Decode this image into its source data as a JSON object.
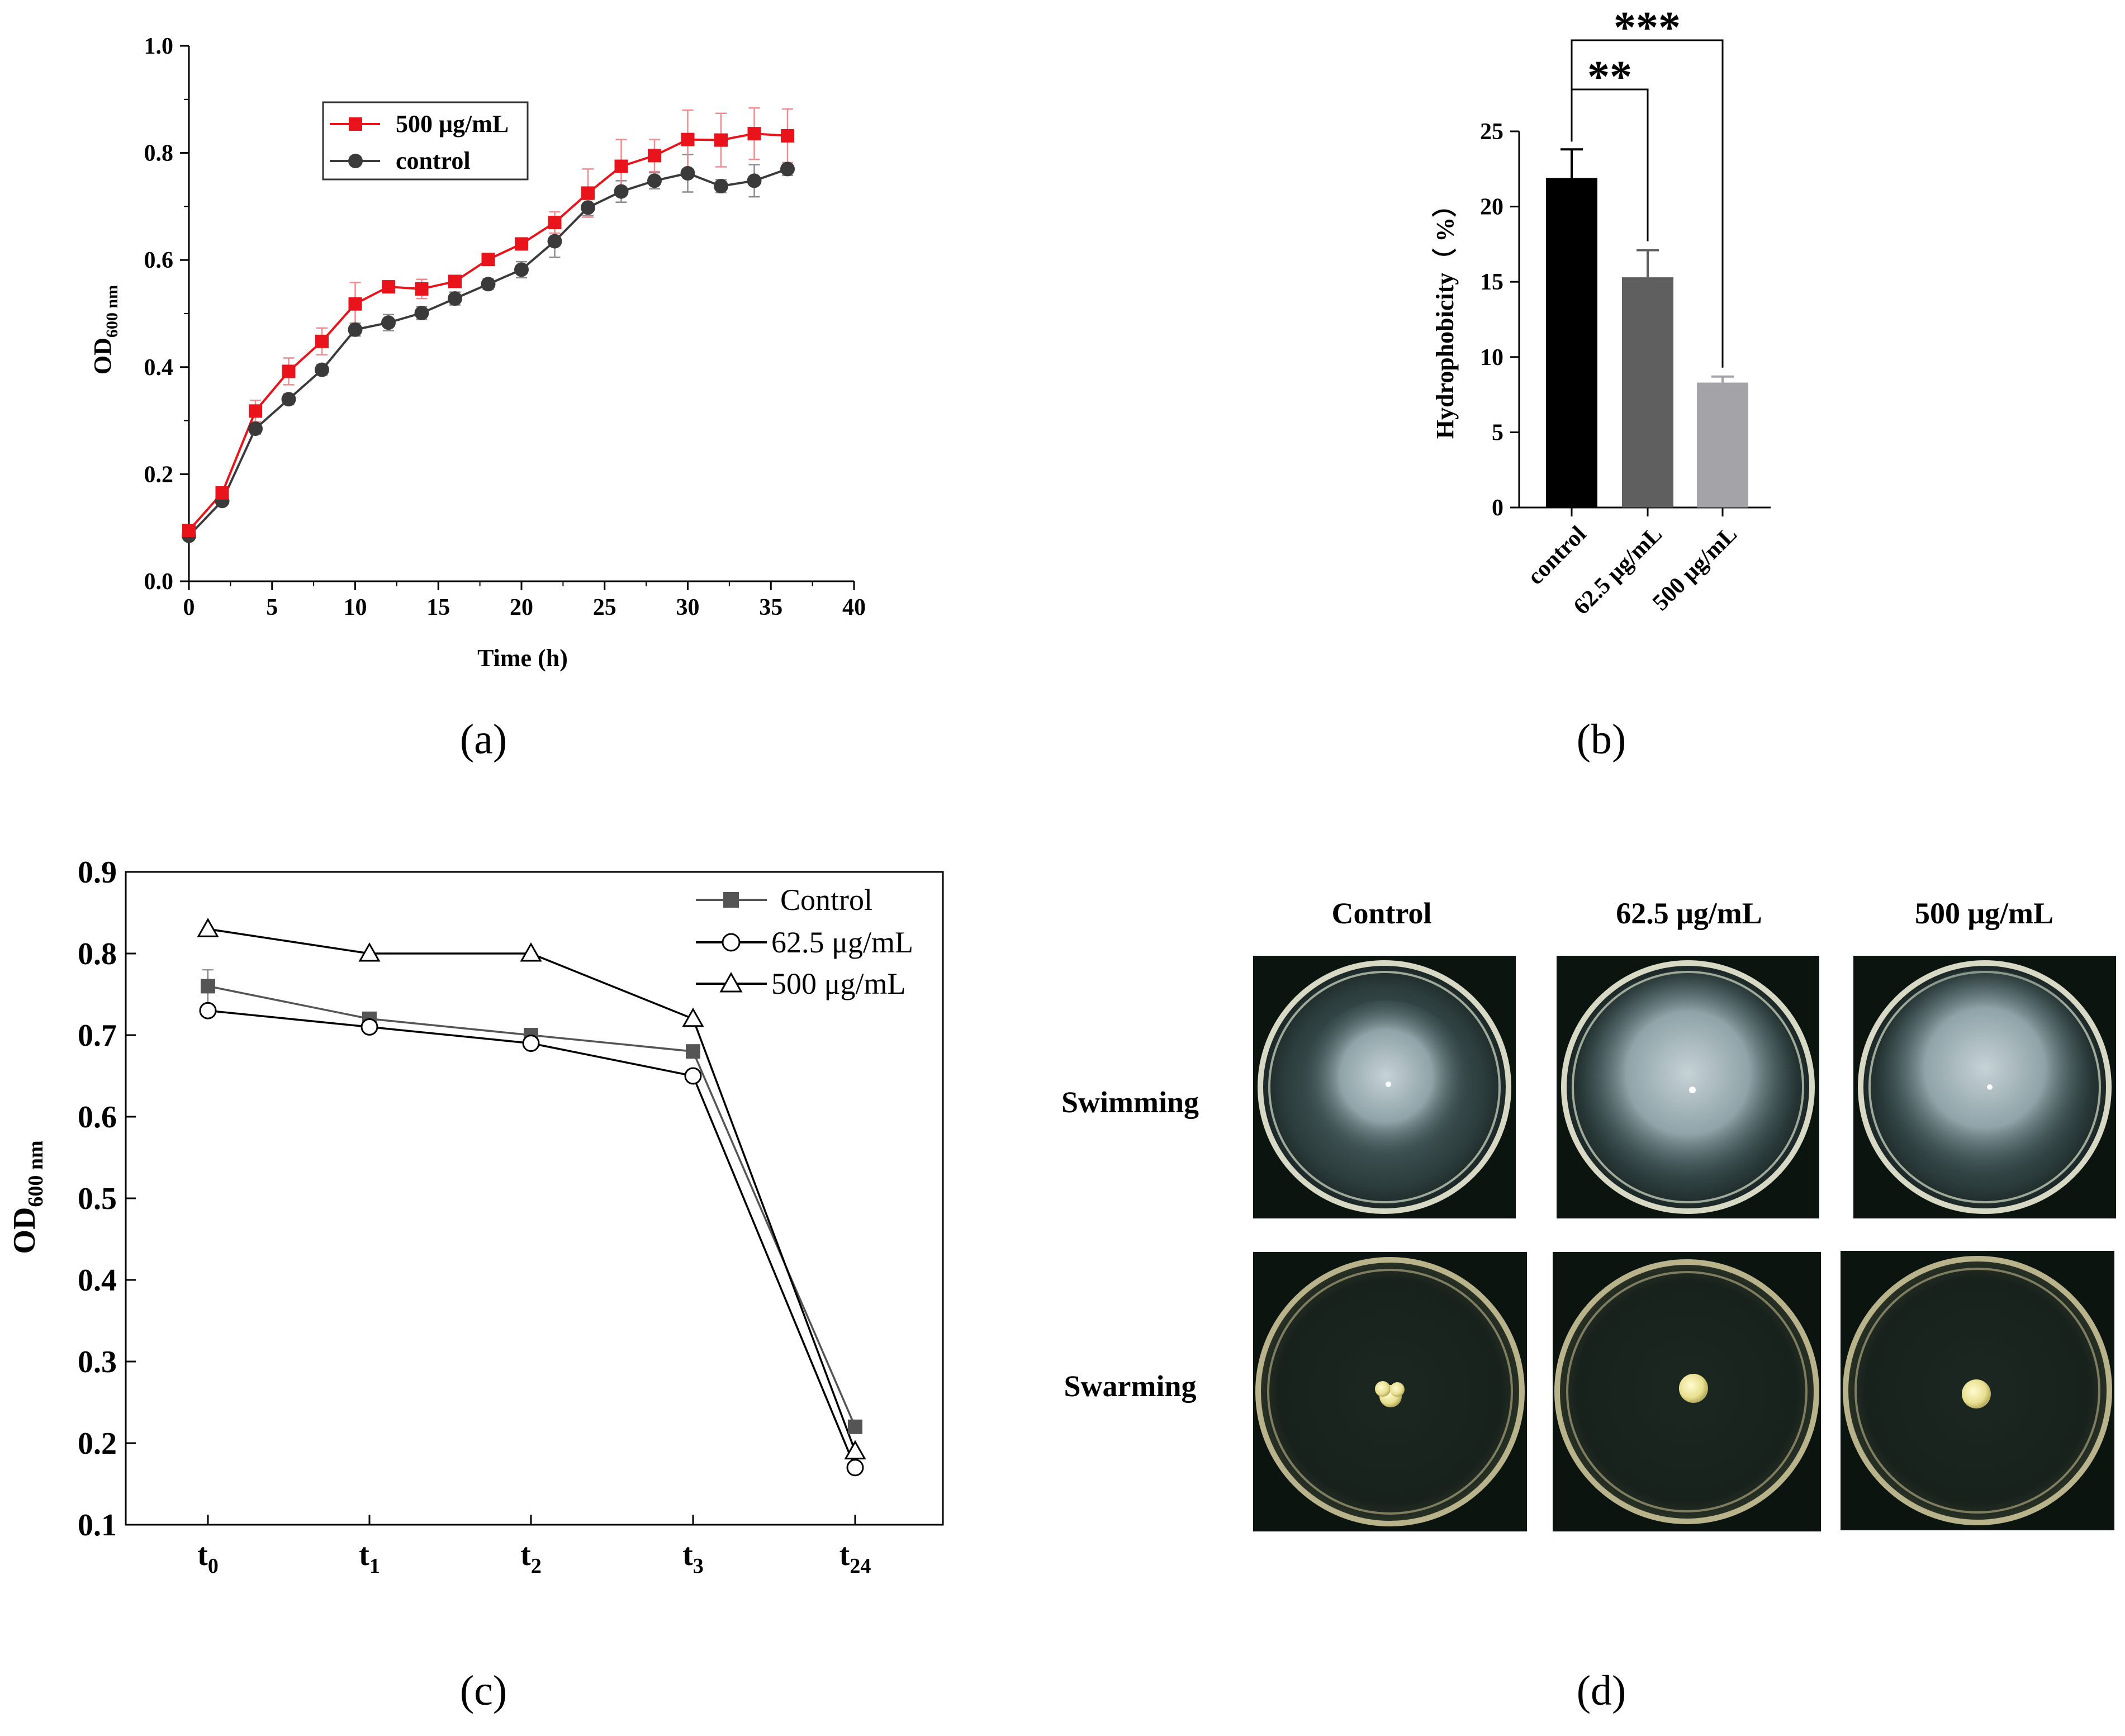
{
  "figure": {
    "panels": [
      "(a)",
      "(b)",
      "(c)",
      "(d)"
    ]
  },
  "colors": {
    "red_series": "#e8131b",
    "dark_series": "#3a3a3a",
    "bar_control": "#000000",
    "bar_62": "#5f5f5f",
    "bar_500": "#a4a4a8",
    "plate_bg": "#0c1410"
  },
  "chart_data": [
    {
      "panel": "(a)",
      "type": "line",
      "title": "",
      "xlabel": "Time (h)",
      "ylabel_main": "OD",
      "ylabel_sub": "600 nm",
      "xlim": [
        0,
        40
      ],
      "ylim": [
        0.0,
        1.0
      ],
      "xticks": [
        "0",
        "5",
        "10",
        "15",
        "20",
        "25",
        "30",
        "35",
        "40"
      ],
      "yticks": [
        "0.0",
        "0.2",
        "0.4",
        "0.6",
        "0.8",
        "1.0"
      ],
      "legend_position": "top-left",
      "x": [
        0,
        2,
        4,
        6,
        8,
        10,
        12,
        14,
        16,
        18,
        20,
        22,
        24,
        26,
        28,
        30,
        32,
        34,
        36
      ],
      "series": [
        {
          "name": "500 μg/mL",
          "marker": "square",
          "values": [
            0.095,
            0.165,
            0.318,
            0.392,
            0.448,
            0.518,
            0.55,
            0.546,
            0.56,
            0.601,
            0.63,
            0.67,
            0.725,
            0.775,
            0.795,
            0.825,
            0.824,
            0.836,
            0.832
          ],
          "errors": [
            0.005,
            0.008,
            0.02,
            0.025,
            0.025,
            0.04,
            0.008,
            0.018,
            0.01,
            0.01,
            0.01,
            0.02,
            0.045,
            0.05,
            0.03,
            0.055,
            0.05,
            0.048,
            0.05
          ]
        },
        {
          "name": "control",
          "marker": "circle",
          "values": [
            0.085,
            0.15,
            0.285,
            0.34,
            0.395,
            0.47,
            0.483,
            0.501,
            0.528,
            0.555,
            0.582,
            0.635,
            0.698,
            0.728,
            0.748,
            0.762,
            0.738,
            0.748,
            0.77
          ],
          "errors": [
            0.004,
            0.006,
            0.01,
            0.01,
            0.01,
            0.012,
            0.015,
            0.012,
            0.012,
            0.01,
            0.015,
            0.03,
            0.015,
            0.02,
            0.015,
            0.035,
            0.012,
            0.03,
            0.012
          ]
        }
      ]
    },
    {
      "panel": "(b)",
      "type": "bar",
      "title": "",
      "xlabel": "",
      "ylabel": "Hydrophobicity（ %）",
      "ylim": [
        0,
        25
      ],
      "yticks": [
        "0",
        "5",
        "10",
        "15",
        "20",
        "25"
      ],
      "categories": [
        "control",
        "62.5 μg/mL",
        "500 μg/mL"
      ],
      "values": [
        21.9,
        15.3,
        8.3
      ],
      "errors": [
        1.9,
        1.8,
        0.4
      ],
      "significance": [
        {
          "from": "control",
          "to": "62.5 μg/mL",
          "label": "**"
        },
        {
          "from": "control",
          "to": "500 μg/mL",
          "label": "***"
        }
      ]
    },
    {
      "panel": "(c)",
      "type": "line",
      "title": "",
      "xlabel": "",
      "ylabel_main": "OD",
      "ylabel_sub": "600 nm",
      "ylim": [
        0.1,
        0.9
      ],
      "yticks": [
        "0.1",
        "0.2",
        "0.3",
        "0.4",
        "0.5",
        "0.6",
        "0.7",
        "0.8",
        "0.9"
      ],
      "categories": [
        {
          "main": "t",
          "sub": "0"
        },
        {
          "main": "t",
          "sub": "1"
        },
        {
          "main": "t",
          "sub": "2"
        },
        {
          "main": "t",
          "sub": "3"
        },
        {
          "main": "t",
          "sub": "24"
        }
      ],
      "legend_position": "top-right",
      "series": [
        {
          "name": "Control",
          "marker": "filled-square",
          "values": [
            0.76,
            0.72,
            0.7,
            0.68,
            0.22
          ],
          "errors": [
            0.02,
            0.005,
            0.005,
            0.005,
            0.005
          ]
        },
        {
          "name": "62.5 μg/mL",
          "marker": "open-circle",
          "values": [
            0.73,
            0.71,
            0.69,
            0.65,
            0.17
          ],
          "errors": [
            0,
            0.01,
            0.01,
            0,
            0
          ]
        },
        {
          "name": "500 μg/mL",
          "marker": "open-triangle",
          "values": [
            0.83,
            0.8,
            0.8,
            0.72,
            0.19
          ],
          "errors": [
            0,
            0,
            0,
            0,
            0
          ]
        }
      ]
    }
  ],
  "plates": {
    "columns": [
      "Control",
      "62.5 μg/mL",
      "500 μg/mL"
    ],
    "rows": [
      "Swimming",
      "Swarming"
    ]
  }
}
